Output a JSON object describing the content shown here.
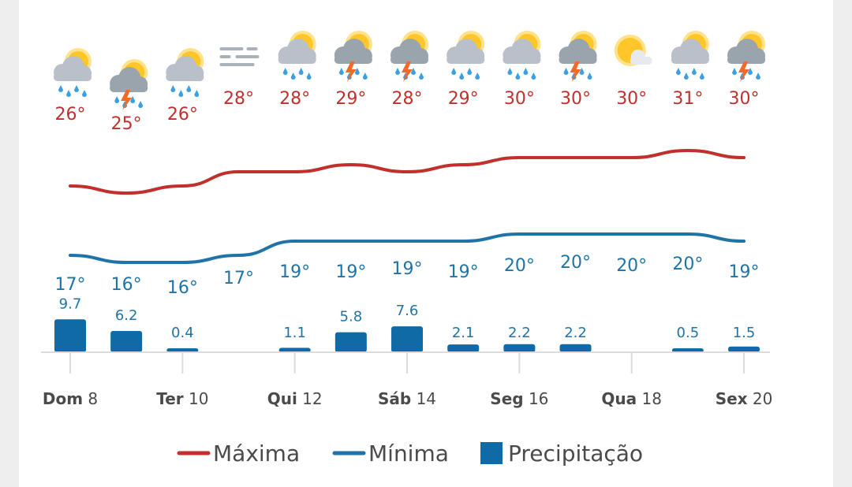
{
  "colors": {
    "max": "#c0302c",
    "min": "#1f73a7",
    "precip": "#0f6aa6",
    "axis": "#dcdcdc",
    "sun": "#ffc62a",
    "cloud": "#b9c0c9",
    "rain": "#3aa0e4",
    "bolt": "#f26a2a"
  },
  "chart_data": {
    "type": "line",
    "days": [
      8,
      9,
      10,
      11,
      12,
      13,
      14,
      15,
      16,
      17,
      18,
      19,
      20
    ],
    "x_ticks": [
      {
        "day": 8,
        "weekday": "Dom",
        "num": "8"
      },
      {
        "day": 10,
        "weekday": "Ter",
        "num": "10"
      },
      {
        "day": 12,
        "weekday": "Qui",
        "num": "12"
      },
      {
        "day": 14,
        "weekday": "Sáb",
        "num": "14"
      },
      {
        "day": 16,
        "weekday": "Seg",
        "num": "16"
      },
      {
        "day": 18,
        "weekday": "Qua",
        "num": "18"
      },
      {
        "day": 20,
        "weekday": "Sex",
        "num": "20"
      }
    ],
    "icons": [
      "sun-cloud-rain-icon",
      "storm-sun-icon",
      "sun-cloud-rain-icon",
      "fog-icon",
      "sun-cloud-rain-icon",
      "storm-sun-icon",
      "storm-sun-icon",
      "sun-cloud-rain-icon",
      "sun-cloud-rain-icon",
      "storm-sun-icon",
      "partly-cloudy-icon",
      "sun-cloud-rain-icon",
      "storm-sun-icon"
    ],
    "series": [
      {
        "name": "Máxima",
        "unit": "°",
        "values": [
          26,
          25,
          26,
          28,
          28,
          29,
          28,
          29,
          30,
          30,
          30,
          31,
          30
        ]
      },
      {
        "name": "Mínima",
        "unit": "°",
        "values": [
          17,
          16,
          16,
          17,
          19,
          19,
          19,
          19,
          20,
          20,
          20,
          20,
          19
        ]
      },
      {
        "name": "Precipitação",
        "type": "bar",
        "values": [
          9.7,
          6.2,
          0.4,
          0,
          1.1,
          5.8,
          7.6,
          2.1,
          2.2,
          2.2,
          0,
          0.5,
          1.5
        ]
      }
    ]
  },
  "legend": {
    "max": "Máxima",
    "min": "Mínima",
    "precip": "Precipitação"
  }
}
